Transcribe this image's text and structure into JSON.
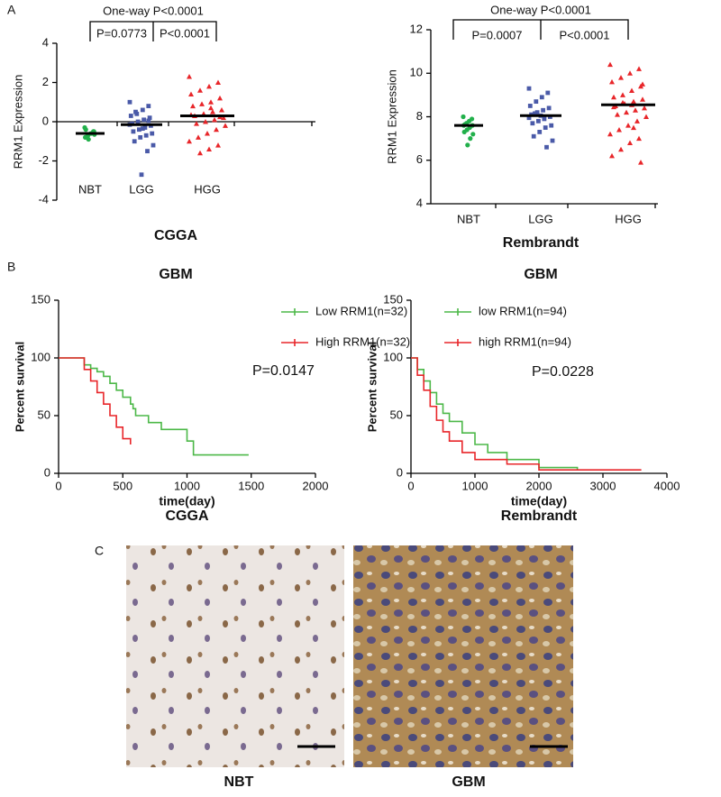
{
  "panel_labels": [
    "A",
    "B",
    "C"
  ],
  "chart_data": [
    {
      "type": "dotplot",
      "title": "CGGA",
      "ylabel": "RRM1 Expression",
      "ylim": [
        -4,
        4
      ],
      "yticks": [
        -4,
        -2,
        0,
        2,
        4
      ],
      "annotations": [
        "One-way P<0.0001",
        "P=0.0773",
        "P<0.0001"
      ],
      "series": [
        {
          "name": "NBT",
          "color": "#22b04b",
          "values": [
            -0.3,
            -0.5,
            -0.6,
            -0.7,
            -0.8,
            -0.5,
            -0.6,
            -0.9,
            -0.4,
            -0.65
          ],
          "mean": -0.6
        },
        {
          "name": "LGG",
          "color": "#4a5aa8",
          "values": [
            1.0,
            0.8,
            0.6,
            0.4,
            0.3,
            0.2,
            0.1,
            0.0,
            -0.1,
            -0.2,
            -0.3,
            -0.4,
            -0.5,
            -0.6,
            -0.7,
            -0.8,
            -1.0,
            -1.2,
            -1.5,
            -2.7,
            0.5,
            -0.15,
            0.05,
            -0.35
          ],
          "mean": -0.15
        },
        {
          "name": "HGG",
          "color": "#e8262a",
          "values": [
            2.3,
            2.0,
            1.8,
            1.6,
            1.4,
            1.2,
            1.0,
            0.9,
            0.8,
            0.6,
            0.5,
            0.4,
            0.3,
            0.2,
            0.1,
            0.0,
            -0.1,
            -0.2,
            -0.4,
            -0.6,
            -0.8,
            -1.0,
            -1.2,
            -1.4,
            -1.6,
            0.35,
            0.25,
            0.7
          ],
          "mean": 0.3
        }
      ]
    },
    {
      "type": "dotplot",
      "title": "Rembrandt",
      "ylabel": "RRM1 Expression",
      "ylim": [
        4,
        12
      ],
      "yticks": [
        4,
        6,
        8,
        10,
        12
      ],
      "annotations": [
        "One-way P<0.0001",
        "P=0.0007",
        "P<0.0001"
      ],
      "series": [
        {
          "name": "NBT",
          "color": "#22b04b",
          "values": [
            8.0,
            7.9,
            7.8,
            7.7,
            7.6,
            7.6,
            7.5,
            7.4,
            7.3,
            7.2,
            7.0,
            6.7,
            7.65
          ],
          "mean": 7.6
        },
        {
          "name": "LGG",
          "color": "#4a5aa8",
          "values": [
            9.3,
            9.1,
            8.9,
            8.7,
            8.5,
            8.4,
            8.3,
            8.2,
            8.1,
            8.0,
            7.9,
            7.8,
            7.7,
            7.6,
            7.5,
            7.3,
            7.1,
            6.9,
            6.6,
            8.05,
            8.15,
            7.95
          ],
          "mean": 8.05
        },
        {
          "name": "HGG",
          "color": "#e8262a",
          "values": [
            10.4,
            10.2,
            10.0,
            9.8,
            9.6,
            9.4,
            9.2,
            9.0,
            8.9,
            8.8,
            8.7,
            8.6,
            8.5,
            8.4,
            8.3,
            8.2,
            8.1,
            8.0,
            7.8,
            7.6,
            7.4,
            7.2,
            7.0,
            6.8,
            6.5,
            6.2,
            5.9,
            8.55,
            8.65,
            8.45,
            9.5,
            7.5
          ],
          "mean": 8.55
        }
      ]
    },
    {
      "type": "km",
      "title": "GBM",
      "subtitle": "CGGA",
      "xlabel": "time(day)",
      "ylabel": "Percent survival",
      "xlim": [
        0,
        2000
      ],
      "xticks": [
        0,
        500,
        1000,
        1500,
        2000
      ],
      "ylim": [
        0,
        150
      ],
      "yticks": [
        0,
        50,
        100,
        150
      ],
      "annotation": "P=0.0147",
      "series": [
        {
          "name": "Low RRM1(n=32)",
          "color": "#4cb848",
          "x": [
            0,
            150,
            200,
            250,
            300,
            350,
            400,
            450,
            500,
            560,
            580,
            600,
            700,
            800,
            1000,
            1050,
            1480
          ],
          "values": [
            100,
            100,
            94,
            91,
            88,
            84,
            78,
            72,
            66,
            60,
            56,
            50,
            44,
            38,
            28,
            16,
            16
          ]
        },
        {
          "name": "High RRM1(n=32)",
          "color": "#e8262a",
          "x": [
            0,
            150,
            200,
            250,
            300,
            350,
            400,
            450,
            500,
            560
          ],
          "values": [
            100,
            100,
            90,
            80,
            70,
            60,
            50,
            40,
            30,
            25
          ]
        }
      ]
    },
    {
      "type": "km",
      "title": "GBM",
      "subtitle": "Rembrandt",
      "xlabel": "time(day)",
      "ylabel": "Percent survival",
      "xlim": [
        0,
        4000
      ],
      "xticks": [
        0,
        1000,
        2000,
        3000,
        4000
      ],
      "ylim": [
        0,
        150
      ],
      "yticks": [
        0,
        50,
        100,
        150
      ],
      "annotation": "P=0.0228",
      "series": [
        {
          "name": "low RRM1(n=94)",
          "color": "#4cb848",
          "x": [
            0,
            100,
            200,
            300,
            400,
            500,
            600,
            800,
            1000,
            1200,
            1500,
            2000,
            2600
          ],
          "values": [
            100,
            90,
            80,
            70,
            60,
            52,
            45,
            35,
            25,
            18,
            12,
            5,
            3
          ]
        },
        {
          "name": "high RRM1(n=94)",
          "color": "#e8262a",
          "x": [
            0,
            100,
            200,
            300,
            400,
            500,
            600,
            800,
            1000,
            1500,
            2000,
            3600
          ],
          "values": [
            100,
            85,
            72,
            58,
            46,
            36,
            28,
            18,
            12,
            8,
            3,
            3
          ]
        }
      ]
    }
  ],
  "images": [
    {
      "label": "NBT"
    },
    {
      "label": "GBM"
    }
  ]
}
